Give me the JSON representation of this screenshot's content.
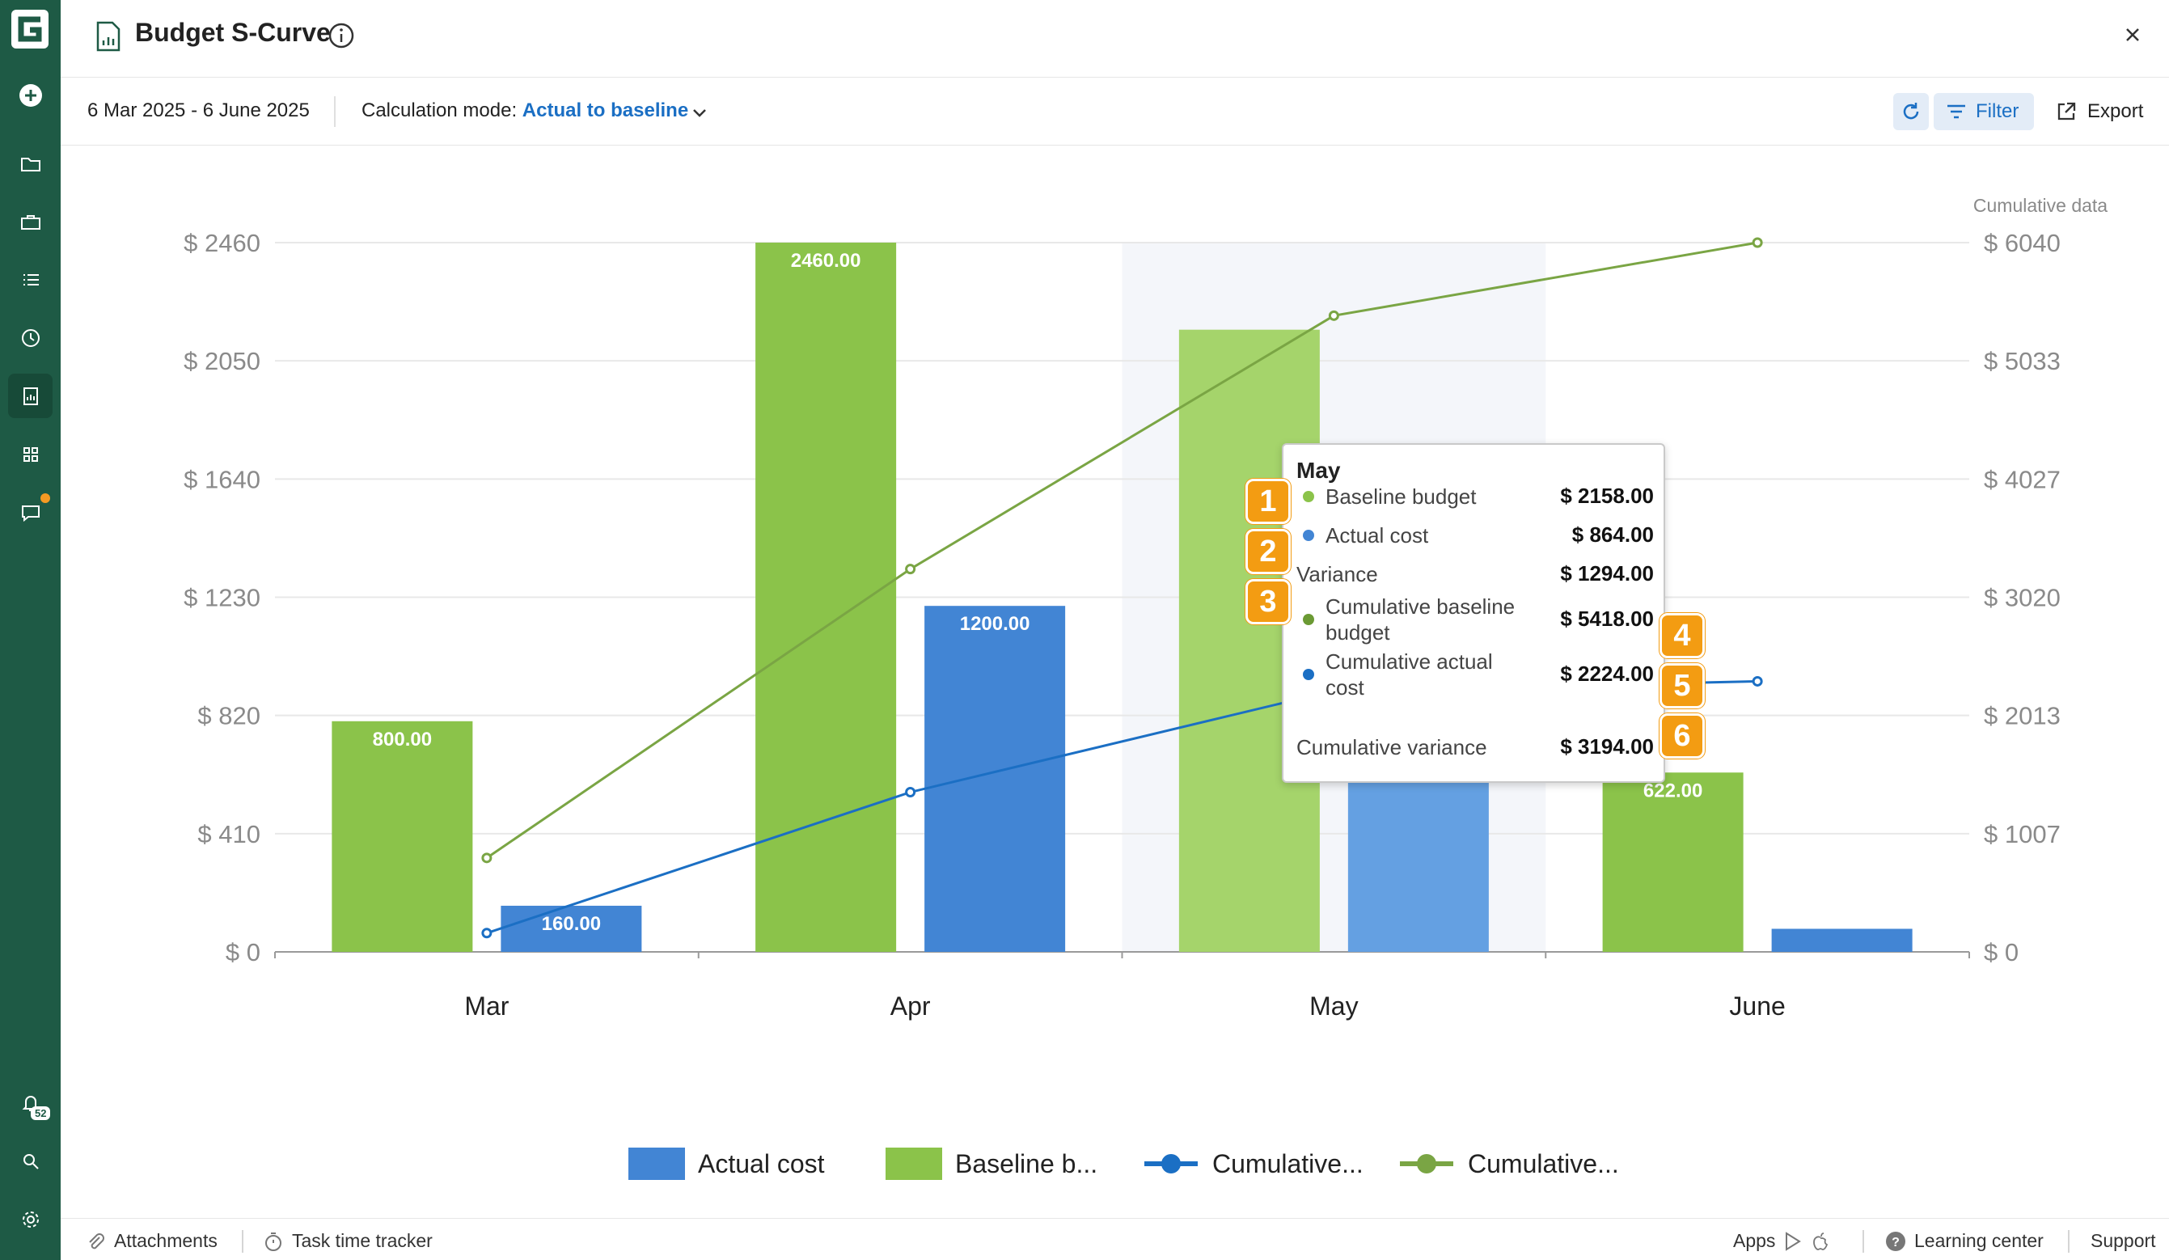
{
  "sidebar": {
    "logo_letter": "G",
    "items": [
      {
        "icon": "plus-circle-icon"
      },
      {
        "icon": "folder-icon"
      },
      {
        "icon": "briefcase-icon"
      },
      {
        "icon": "list-icon"
      },
      {
        "icon": "clock-icon"
      },
      {
        "icon": "report-icon"
      },
      {
        "icon": "apps-grid-icon"
      },
      {
        "icon": "chat-icon"
      }
    ],
    "notification_count": "52",
    "bottom_items": [
      {
        "icon": "bell-icon"
      },
      {
        "icon": "search-icon"
      },
      {
        "icon": "gear-icon"
      }
    ]
  },
  "header": {
    "title": "Budget S-Curve"
  },
  "toolbar": {
    "date_range": "6 Mar 2025 - 6 June 2025",
    "calc_label": "Calculation mode:",
    "calc_value": "Actual to baseline",
    "filter_label": "Filter",
    "export_label": "Export"
  },
  "chart_data": {
    "type": "bar",
    "categories": [
      "Mar",
      "Apr",
      "May",
      "June"
    ],
    "series": [
      {
        "name": "Baseline budget",
        "type": "bar",
        "color": "#8bc34a",
        "values": [
          800,
          2460,
          2158,
          622
        ],
        "labels": [
          "800.00",
          "2460.00",
          "",
          "622.00"
        ]
      },
      {
        "name": "Actual cost",
        "type": "bar",
        "color": "#4285d4",
        "values": [
          160,
          1200,
          864,
          80
        ],
        "labels": [
          "160.00",
          "1200.00",
          "",
          ""
        ]
      },
      {
        "name": "Cumulative baseline budget",
        "type": "line",
        "axis": "right",
        "color": "#7aa544",
        "values": [
          800,
          3260,
          5418,
          6040
        ]
      },
      {
        "name": "Cumulative actual cost",
        "type": "line",
        "axis": "right",
        "color": "#1b6fc4",
        "values": [
          160,
          1360,
          2224,
          2304
        ]
      }
    ],
    "y_left": {
      "ticks": [
        "$ 0",
        "$ 410",
        "$ 820",
        "$ 1230",
        "$ 1640",
        "$ 2050",
        "$ 2460"
      ],
      "range": [
        0,
        2460
      ]
    },
    "y_right": {
      "title": "Cumulative data",
      "ticks": [
        "$ 0",
        "$ 1007",
        "$ 2013",
        "$ 3020",
        "$ 4027",
        "$ 5033",
        "$ 6040"
      ],
      "range": [
        0,
        6040
      ]
    },
    "highlighted_category": "May",
    "legend": [
      {
        "label": "Actual cost",
        "kind": "bar",
        "color": "#4285d4"
      },
      {
        "label": "Baseline b...",
        "kind": "bar",
        "color": "#8bc34a"
      },
      {
        "label": "Cumulative...",
        "kind": "line",
        "color": "#1b6fc4"
      },
      {
        "label": "Cumulative...",
        "kind": "line",
        "color": "#7aa544"
      }
    ],
    "legend_position": "bottom"
  },
  "tooltip": {
    "title": "May",
    "rows": [
      {
        "label": "Baseline budget",
        "value": "$ 2158.00",
        "dot": "#8bc34a",
        "marker": "1"
      },
      {
        "label": "Actual cost",
        "value": "$ 864.00",
        "dot": "#4285d4",
        "marker": "2"
      },
      {
        "label": "Variance",
        "value": "$ 1294.00",
        "dot": "",
        "marker": "3"
      },
      {
        "label": "Cumulative baseline budget",
        "label_l1": "Cumulative baseline",
        "label_l2": "budget",
        "value": "$ 5418.00",
        "dot": "#6b9a34",
        "marker": "4"
      },
      {
        "label": "Cumulative actual cost",
        "label_l1": "Cumulative actual",
        "label_l2": "cost",
        "value": "$ 2224.00",
        "dot": "#1b6fc4",
        "marker": "5"
      },
      {
        "label": "Cumulative variance",
        "value": "$ 3194.00",
        "dot": "",
        "marker": "6"
      }
    ]
  },
  "footer": {
    "attachments": "Attachments",
    "task_time_tracker": "Task time tracker",
    "apps": "Apps",
    "learning_center": "Learning center",
    "support": "Support"
  }
}
